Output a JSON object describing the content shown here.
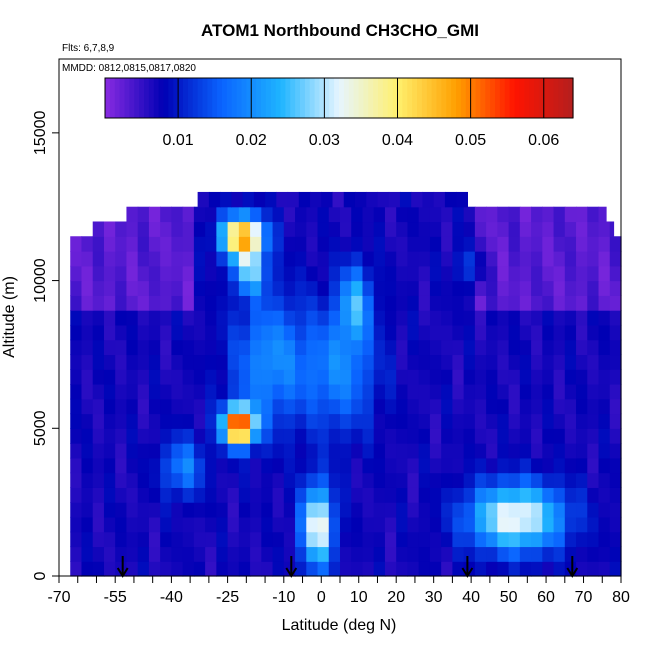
{
  "chart_data": {
    "type": "heatmap",
    "title": "ATOM1 Northbound CH3CHO_GMI",
    "flights_text": "Flts: 6,7,8,9",
    "dates_text": "MMDD: 0812,0815,0817,0820",
    "xlabel": "Latitude (deg N)",
    "ylabel": "Altitude (m)",
    "xlim": [
      -70,
      80
    ],
    "ylim": [
      0,
      17500
    ],
    "x_ticks": [
      -70,
      -55,
      -40,
      -25,
      -10,
      0,
      10,
      20,
      30,
      40,
      50,
      60,
      70,
      80
    ],
    "x_tick_labels": [
      "-70",
      "-55",
      "-40",
      "-25",
      "-10",
      "0",
      "10",
      "20",
      "30",
      "40",
      "50",
      "60",
      "70",
      "80"
    ],
    "x_minor_ticks": [
      -65,
      -60,
      -50,
      -45,
      -35,
      -30,
      -20,
      -15,
      -5,
      5,
      15,
      25,
      35,
      45,
      55,
      65,
      75
    ],
    "y_ticks": [
      0,
      5000,
      10000,
      15000
    ],
    "y_tick_labels": [
      "0",
      "5000",
      "10000",
      "15000"
    ],
    "colorbar": {
      "range": [
        0,
        0.064
      ],
      "ticks": [
        0.01,
        0.02,
        0.03,
        0.04,
        0.05,
        0.06
      ],
      "tick_labels": [
        "0.01",
        "0.02",
        "0.03",
        "0.04",
        "0.05",
        "0.06"
      ],
      "color_stops": [
        "#8a2be2",
        "#0000b4",
        "#0a64ff",
        "#1eb4ff",
        "#e6f5ff",
        "#fff06e",
        "#ffa000",
        "#ff1400",
        "#b41e1e"
      ]
    },
    "field": {
      "lat_min": -67,
      "lat_max": 80,
      "lat_step": 3,
      "alt_step": 500,
      "alt_top": 11000,
      "upper_layer_extents": [
        {
          "alt_from": 11000,
          "alt_to": 11500,
          "lat_from": -67,
          "lat_to": 80
        },
        {
          "alt_from": 11500,
          "alt_to": 12000,
          "lat_from": -61,
          "lat_to": 78
        },
        {
          "alt_from": 12000,
          "alt_to": 12500,
          "lat_from": -52,
          "lat_to": 76
        },
        {
          "alt_from": 12500,
          "alt_to": 13000,
          "lat_from": -33,
          "lat_to": 39
        }
      ],
      "background": 0.007,
      "plumes": [
        {
          "lat": -21,
          "alt": 11500,
          "slat": 4,
          "salt": 500,
          "amp": 0.042
        },
        {
          "lat": -19,
          "alt": 10300,
          "slat": 3,
          "salt": 500,
          "amp": 0.018
        },
        {
          "lat": -22,
          "alt": 5100,
          "slat": 3,
          "salt": 450,
          "amp": 0.05
        },
        {
          "lat": -37,
          "alt": 3700,
          "slat": 4,
          "salt": 700,
          "amp": 0.012
        },
        {
          "lat": -1,
          "alt": 1700,
          "slat": 3,
          "salt": 1000,
          "amp": 0.028
        },
        {
          "lat": 52,
          "alt": 2000,
          "slat": 9,
          "salt": 800,
          "amp": 0.027
        },
        {
          "lat": 5,
          "alt": 7000,
          "slat": 7,
          "salt": 1500,
          "amp": 0.012
        },
        {
          "lat": 9,
          "alt": 9300,
          "slat": 3,
          "salt": 900,
          "amp": 0.015
        },
        {
          "lat": -14,
          "alt": 7300,
          "slat": 7,
          "salt": 1600,
          "amp": 0.013
        },
        {
          "lat": 40,
          "alt": 10500,
          "slat": 3,
          "salt": 500,
          "amp": 0.006
        }
      ]
    },
    "arrows_lat": [
      -53,
      -8,
      39,
      67
    ]
  }
}
